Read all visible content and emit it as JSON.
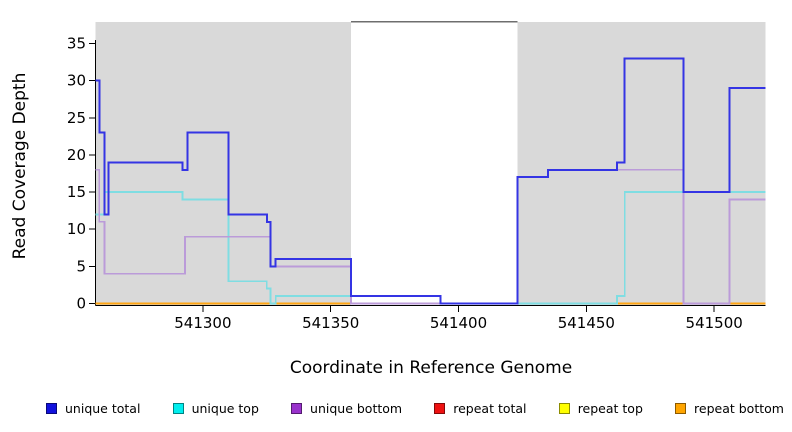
{
  "chart_data": {
    "type": "line",
    "subtype": "step",
    "title": "",
    "xlabel": "Coordinate in Reference Genome",
    "ylabel": "Read Coverage Depth",
    "xlim": [
      541258,
      541520
    ],
    "ylim": [
      0,
      37.9
    ],
    "x_ticks": [
      541300,
      541350,
      541400,
      541450,
      541500
    ],
    "y_ticks": [
      0,
      5,
      10,
      15,
      20,
      25,
      30,
      35
    ],
    "grid": false,
    "background_color": "#ffffff",
    "shaded_region_color": "#d9d9d9",
    "shaded_regions": [
      {
        "x0": 541258,
        "x1": 541358
      },
      {
        "x0": 541423,
        "x1": 541520
      }
    ],
    "gap_top_line": {
      "x0": 541358,
      "x1": 541423,
      "color": "#6e6e6e"
    },
    "series": [
      {
        "name": "repeat total",
        "color": "#e02020",
        "width": 1.5,
        "points": [
          [
            541258,
            0
          ]
        ]
      },
      {
        "name": "repeat top",
        "color": "#ffff00",
        "width": 1.5,
        "points": [
          [
            541258,
            0
          ]
        ]
      },
      {
        "name": "repeat bottom",
        "color": "#ffa513",
        "width": 2,
        "points": [
          [
            541258,
            0
          ]
        ]
      },
      {
        "name": "unique top",
        "color": "#7fdde2",
        "width": 1.8,
        "points": [
          [
            541258,
            12
          ],
          [
            541261.5,
            15
          ],
          [
            541292,
            14
          ],
          [
            541310,
            3
          ],
          [
            541325,
            2
          ],
          [
            541326.5,
            0
          ],
          [
            541328.5,
            1
          ],
          [
            541358,
            0
          ],
          [
            541462,
            1
          ],
          [
            541465,
            15
          ]
        ]
      },
      {
        "name": "unique bottom",
        "color": "#bb9bd9",
        "width": 1.8,
        "points": [
          [
            541258,
            18
          ],
          [
            541259.5,
            11
          ],
          [
            541261.5,
            4
          ],
          [
            541293,
            9
          ],
          [
            541326.5,
            5
          ],
          [
            541358,
            0
          ],
          [
            541423,
            17
          ],
          [
            541435,
            18
          ],
          [
            541488,
            0
          ],
          [
            541506,
            14
          ]
        ]
      },
      {
        "name": "unique total",
        "color": "#3434e4",
        "width": 2,
        "points": [
          [
            541258,
            30
          ],
          [
            541259.5,
            23
          ],
          [
            541261.5,
            12
          ],
          [
            541263,
            19
          ],
          [
            541292,
            18
          ],
          [
            541294,
            23
          ],
          [
            541310,
            12
          ],
          [
            541325,
            11
          ],
          [
            541326.5,
            5
          ],
          [
            541328.5,
            6
          ],
          [
            541358,
            1
          ],
          [
            541393,
            0
          ],
          [
            541423,
            17
          ],
          [
            541435,
            18
          ],
          [
            541462,
            19
          ],
          [
            541465,
            33
          ],
          [
            541488,
            15
          ],
          [
            541506,
            29
          ]
        ]
      }
    ],
    "legend": {
      "position": "bottom",
      "entries": [
        {
          "label": "unique total",
          "swatch": "#1212dd"
        },
        {
          "label": "unique top",
          "swatch": "#00eeee"
        },
        {
          "label": "unique bottom",
          "swatch": "#9932cc"
        },
        {
          "label": "repeat total",
          "swatch": "#ee1111"
        },
        {
          "label": "repeat top",
          "swatch": "#ffff00"
        },
        {
          "label": "repeat bottom",
          "swatch": "#ffa500"
        }
      ]
    }
  }
}
